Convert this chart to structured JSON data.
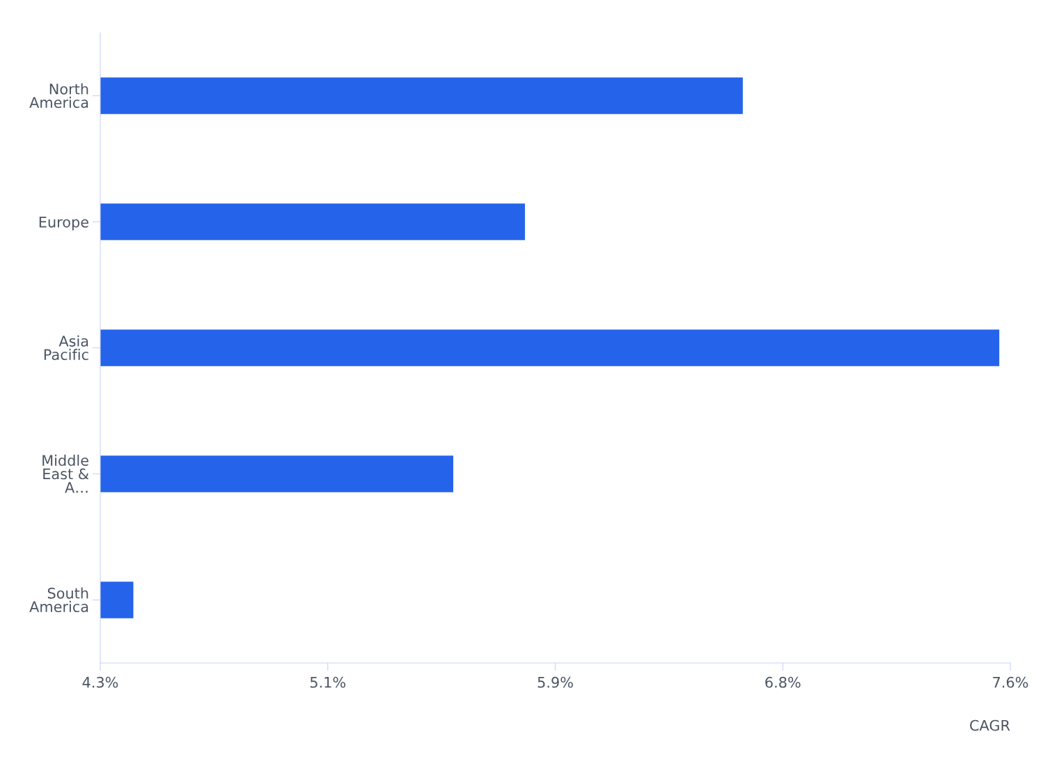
{
  "chart_data": {
    "type": "bar",
    "orientation": "horizontal",
    "categories": [
      "North\nAmerica",
      "Europe",
      "Asia\nPacific",
      "Middle\nEast &\nA…",
      "South\nAmerica"
    ],
    "series": [
      {
        "color": "#2563eb",
        "values": [
          6.63,
          5.84,
          7.56,
          5.58,
          4.42
        ]
      }
    ],
    "xlabel": "CAGR",
    "xlim": [
      4.3,
      7.6
    ],
    "xticks": [
      {
        "value": 4.3,
        "label": "4.3%"
      },
      {
        "value": 5.125,
        "label": "5.1%"
      },
      {
        "value": 5.95,
        "label": "5.9%"
      },
      {
        "value": 6.775,
        "label": "6.8%"
      },
      {
        "value": 7.6,
        "label": "7.6%"
      }
    ],
    "grid": false,
    "legend": false
  }
}
